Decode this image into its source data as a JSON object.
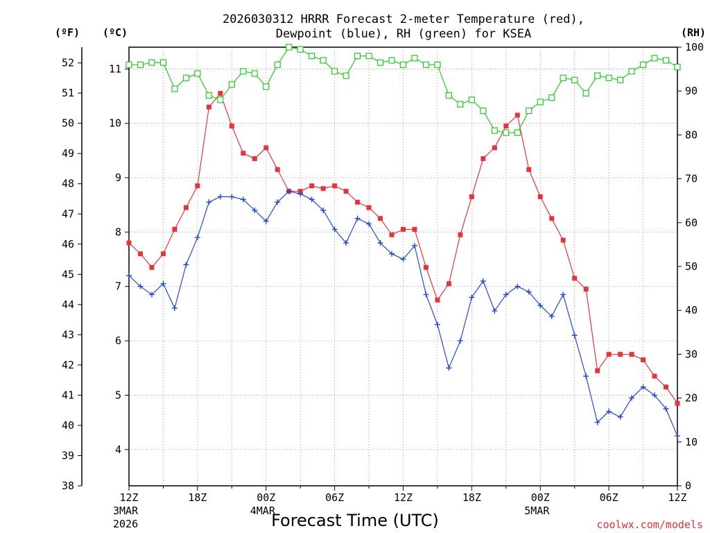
{
  "chart_data": {
    "type": "line",
    "title_line1": "2026030312 HRRR Forecast 2-meter Temperature (red),",
    "title_line2": "Dewpoint (blue), RH (green) for KSEA",
    "left_outer_unit": "(ºF)",
    "left_inner_unit": "(ºC)",
    "right_unit": "(RH)",
    "xlabel": "Forecast Time (UTC)",
    "credit": "coolwx.com/models",
    "x_hours": {
      "start": 0,
      "end": 48,
      "step": 1
    },
    "x_ticks": [
      {
        "hour": 0,
        "label": "12Z",
        "sub1": "3MAR",
        "sub2": "2026"
      },
      {
        "hour": 6,
        "label": "18Z"
      },
      {
        "hour": 12,
        "label": "00Z",
        "sub1": "4MAR"
      },
      {
        "hour": 18,
        "label": "06Z"
      },
      {
        "hour": 24,
        "label": "12Z"
      },
      {
        "hour": 30,
        "label": "18Z"
      },
      {
        "hour": 36,
        "label": "00Z",
        "sub1": "5MAR"
      },
      {
        "hour": 42,
        "label": "06Z"
      },
      {
        "hour": 48,
        "label": "12Z"
      }
    ],
    "f_axis": {
      "min": 38,
      "max": 52,
      "ticks": [
        "38",
        "39",
        "40",
        "41",
        "42",
        "43",
        "44",
        "45",
        "46",
        "47",
        "48",
        "49",
        "50",
        "51",
        "52"
      ]
    },
    "c_axis": {
      "min": 3.3333,
      "max": 11.4,
      "ticks": [
        "4",
        "5",
        "6",
        "7",
        "8",
        "9",
        "10",
        "11"
      ]
    },
    "rh_axis": {
      "min": 0,
      "max": 100,
      "ticks": [
        "0",
        "10",
        "20",
        "30",
        "40",
        "50",
        "60",
        "70",
        "80",
        "90",
        "100"
      ]
    },
    "series": [
      {
        "name": "Temperature",
        "unit": "C",
        "color": "#e8333a",
        "marker": "filled-square",
        "values": [
          7.8,
          7.6,
          7.35,
          7.6,
          8.05,
          8.45,
          8.85,
          10.3,
          10.55,
          9.95,
          9.45,
          9.35,
          9.55,
          9.15,
          8.75,
          8.75,
          8.85,
          8.8,
          8.85,
          8.75,
          8.55,
          8.45,
          8.25,
          7.95,
          8.05,
          8.05,
          7.35,
          6.75,
          7.05,
          7.95,
          8.65,
          9.35,
          9.55,
          9.95,
          10.15,
          9.15,
          8.65,
          8.25,
          7.85,
          7.15,
          6.95,
          5.45,
          5.75,
          5.75,
          5.75,
          5.65,
          5.35,
          5.15,
          4.85
        ]
      },
      {
        "name": "Dewpoint",
        "unit": "C",
        "color": "#2046e0",
        "marker": "plus",
        "values": [
          7.2,
          7.0,
          6.85,
          7.05,
          6.6,
          7.4,
          7.9,
          8.55,
          8.65,
          8.65,
          8.6,
          8.4,
          8.2,
          8.55,
          8.75,
          8.7,
          8.6,
          8.4,
          8.05,
          7.8,
          8.25,
          8.15,
          7.8,
          7.6,
          7.5,
          7.75,
          6.85,
          6.3,
          5.5,
          6.0,
          6.8,
          7.1,
          6.55,
          6.85,
          7.0,
          6.9,
          6.65,
          6.45,
          6.85,
          6.1,
          5.35,
          4.5,
          4.7,
          4.6,
          4.95,
          5.15,
          5.0,
          4.75,
          4.25
        ]
      },
      {
        "name": "RH",
        "unit": "%",
        "color": "#22cc22",
        "marker": "open-square",
        "values": [
          96,
          96,
          96.5,
          96.5,
          90.5,
          93,
          94,
          89,
          88,
          91.5,
          94.5,
          94,
          91,
          96,
          100,
          99.5,
          98,
          97,
          94.5,
          93.5,
          98,
          98,
          96.5,
          97,
          96,
          97.5,
          96,
          96,
          89,
          87,
          88,
          85.5,
          81,
          80.5,
          80.5,
          85.5,
          87.5,
          88.5,
          93,
          92.5,
          89.5,
          93.5,
          93,
          92.5,
          94.5,
          96,
          97.5,
          97,
          95.5
        ]
      }
    ],
    "grid": true
  }
}
